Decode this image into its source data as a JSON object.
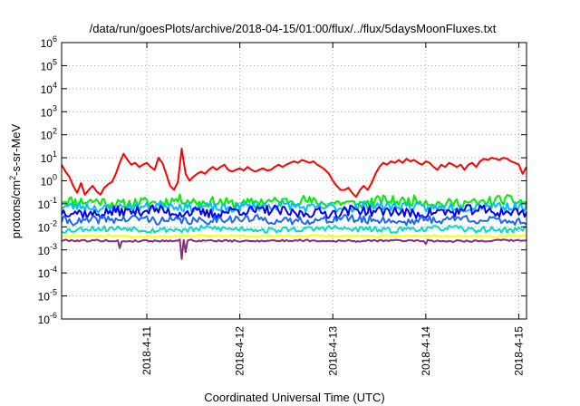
{
  "chart_data": {
    "type": "line",
    "title": "/data/run/goesPlots/archive/2018-04-15/01:00/flux/../flux/5daysMoonFluxes.txt",
    "xlabel": "Coordinated Universal Time (UTC)",
    "ylabel": "protons/cm²-s-sr-MeV",
    "ylabel_parts": {
      "prefix": "protons/cm",
      "sup": "2",
      "suffix": "-s-sr-MeV"
    },
    "y_scale": "log",
    "ylim": [
      1e-06,
      1000000.0
    ],
    "y_ticks": [
      {
        "exp": "-6",
        "value": 1e-06
      },
      {
        "exp": "-5",
        "value": 1e-05
      },
      {
        "exp": "-4",
        "value": 0.0001
      },
      {
        "exp": "-3",
        "value": 0.001
      },
      {
        "exp": "-2",
        "value": 0.01
      },
      {
        "exp": "-1",
        "value": 0.1
      },
      {
        "exp": "0",
        "value": 1
      },
      {
        "exp": "1",
        "value": 10
      },
      {
        "exp": "2",
        "value": 100
      },
      {
        "exp": "3",
        "value": 1000
      },
      {
        "exp": "4",
        "value": 10000
      },
      {
        "exp": "5",
        "value": 100000
      },
      {
        "exp": "6",
        "value": 1000000
      }
    ],
    "y_tick_base": "10",
    "xlim": [
      "2018-04-10T02:00",
      "2018-04-15T02:00"
    ],
    "x_ticks": [
      {
        "label": "2018-4-11",
        "value": "2018-04-11T00:00"
      },
      {
        "label": "2018-4-12",
        "value": "2018-04-12T00:00"
      },
      {
        "label": "2018-4-13",
        "value": "2018-04-13T00:00"
      },
      {
        "label": "2018-4-14",
        "value": "2018-04-14T00:00"
      },
      {
        "label": "2018-4-15",
        "value": "2018-04-15T00:00"
      }
    ],
    "grid": true,
    "grid_style": "dotted",
    "legend": "none",
    "series": [
      {
        "color": "#ff0000",
        "points": [
          [
            "2018-04-10T02:00",
            5
          ],
          [
            "2018-04-10T03:00",
            2.5
          ],
          [
            "2018-04-10T04:00",
            1.5
          ],
          [
            "2018-04-10T05:00",
            0.6
          ],
          [
            "2018-04-10T06:00",
            0.3
          ],
          [
            "2018-04-10T07:00",
            0.8
          ],
          [
            "2018-04-10T08:00",
            0.25
          ],
          [
            "2018-04-10T09:00",
            0.4
          ],
          [
            "2018-04-10T10:00",
            0.6
          ],
          [
            "2018-04-10T11:00",
            0.35
          ],
          [
            "2018-04-10T12:00",
            0.25
          ],
          [
            "2018-04-10T13:00",
            0.5
          ],
          [
            "2018-04-10T14:00",
            0.7
          ],
          [
            "2018-04-10T15:00",
            0.9
          ],
          [
            "2018-04-10T16:00",
            2
          ],
          [
            "2018-04-10T17:00",
            6
          ],
          [
            "2018-04-10T18:00",
            15
          ],
          [
            "2018-04-10T19:00",
            8
          ],
          [
            "2018-04-10T20:00",
            5
          ],
          [
            "2018-04-10T21:00",
            6
          ],
          [
            "2018-04-10T22:00",
            4
          ],
          [
            "2018-04-10T23:00",
            5
          ],
          [
            "2018-04-11T00:00",
            6
          ],
          [
            "2018-04-11T01:00",
            4
          ],
          [
            "2018-04-11T02:00",
            3
          ],
          [
            "2018-04-11T03:00",
            10
          ],
          [
            "2018-04-11T04:00",
            6
          ],
          [
            "2018-04-11T05:00",
            2
          ],
          [
            "2018-04-11T06:00",
            0.6
          ],
          [
            "2018-04-11T07:00",
            0.4
          ],
          [
            "2018-04-11T08:00",
            0.9
          ],
          [
            "2018-04-11T09:00",
            25
          ],
          [
            "2018-04-11T10:00",
            2
          ],
          [
            "2018-04-11T11:00",
            1
          ],
          [
            "2018-04-11T12:00",
            1.5
          ],
          [
            "2018-04-11T13:00",
            2
          ],
          [
            "2018-04-11T14:00",
            2.5
          ],
          [
            "2018-04-11T15:00",
            2
          ],
          [
            "2018-04-11T16:00",
            3
          ],
          [
            "2018-04-11T17:00",
            4
          ],
          [
            "2018-04-11T18:00",
            3
          ],
          [
            "2018-04-11T19:00",
            4
          ],
          [
            "2018-04-11T20:00",
            5
          ],
          [
            "2018-04-11T21:00",
            3
          ],
          [
            "2018-04-11T22:00",
            2.5
          ],
          [
            "2018-04-11T23:00",
            3
          ],
          [
            "2018-04-12T00:00",
            3.5
          ],
          [
            "2018-04-12T01:00",
            2.8
          ],
          [
            "2018-04-12T02:00",
            4
          ],
          [
            "2018-04-12T03:00",
            3
          ],
          [
            "2018-04-12T04:00",
            2.5
          ],
          [
            "2018-04-12T05:00",
            3
          ],
          [
            "2018-04-12T06:00",
            3.5
          ],
          [
            "2018-04-12T07:00",
            2.8
          ],
          [
            "2018-04-12T08:00",
            3
          ],
          [
            "2018-04-12T09:00",
            4
          ],
          [
            "2018-04-12T10:00",
            5
          ],
          [
            "2018-04-12T11:00",
            4
          ],
          [
            "2018-04-12T12:00",
            5
          ],
          [
            "2018-04-12T13:00",
            6
          ],
          [
            "2018-04-12T14:00",
            7
          ],
          [
            "2018-04-12T15:00",
            6
          ],
          [
            "2018-04-12T16:00",
            8
          ],
          [
            "2018-04-12T17:00",
            7
          ],
          [
            "2018-04-12T18:00",
            6
          ],
          [
            "2018-04-12T19:00",
            7
          ],
          [
            "2018-04-12T20:00",
            5
          ],
          [
            "2018-04-12T21:00",
            4
          ],
          [
            "2018-04-12T22:00",
            3
          ],
          [
            "2018-04-12T23:00",
            2
          ],
          [
            "2018-04-13T00:00",
            1
          ],
          [
            "2018-04-13T01:00",
            0.6
          ],
          [
            "2018-04-13T02:00",
            0.4
          ],
          [
            "2018-04-13T03:00",
            0.4
          ],
          [
            "2018-04-13T04:00",
            0.5
          ],
          [
            "2018-04-13T05:00",
            0.3
          ],
          [
            "2018-04-13T06:00",
            0.2
          ],
          [
            "2018-04-13T07:00",
            0.4
          ],
          [
            "2018-04-13T08:00",
            0.6
          ],
          [
            "2018-04-13T09:00",
            0.4
          ],
          [
            "2018-04-13T10:00",
            0.8
          ],
          [
            "2018-04-13T11:00",
            2
          ],
          [
            "2018-04-13T12:00",
            4
          ],
          [
            "2018-04-13T13:00",
            6
          ],
          [
            "2018-04-13T14:00",
            5
          ],
          [
            "2018-04-13T15:00",
            7
          ],
          [
            "2018-04-13T16:00",
            6
          ],
          [
            "2018-04-13T17:00",
            8
          ],
          [
            "2018-04-13T18:00",
            6
          ],
          [
            "2018-04-13T19:00",
            9
          ],
          [
            "2018-04-13T20:00",
            7
          ],
          [
            "2018-04-13T21:00",
            8
          ],
          [
            "2018-04-13T22:00",
            6
          ],
          [
            "2018-04-13T23:00",
            5
          ],
          [
            "2018-04-14T00:00",
            7
          ],
          [
            "2018-04-14T01:00",
            6
          ],
          [
            "2018-04-14T02:00",
            4
          ],
          [
            "2018-04-14T03:00",
            3
          ],
          [
            "2018-04-14T04:00",
            5
          ],
          [
            "2018-04-14T05:00",
            4
          ],
          [
            "2018-04-14T06:00",
            6
          ],
          [
            "2018-04-14T07:00",
            5
          ],
          [
            "2018-04-14T08:00",
            4
          ],
          [
            "2018-04-14T09:00",
            5
          ],
          [
            "2018-04-14T10:00",
            3
          ],
          [
            "2018-04-14T11:00",
            5
          ],
          [
            "2018-04-14T12:00",
            6
          ],
          [
            "2018-04-14T13:00",
            4
          ],
          [
            "2018-04-14T14:00",
            7
          ],
          [
            "2018-04-14T15:00",
            9
          ],
          [
            "2018-04-14T16:00",
            8
          ],
          [
            "2018-04-14T17:00",
            10
          ],
          [
            "2018-04-14T18:00",
            9
          ],
          [
            "2018-04-14T19:00",
            8
          ],
          [
            "2018-04-14T20:00",
            10
          ],
          [
            "2018-04-14T21:00",
            9
          ],
          [
            "2018-04-14T22:00",
            7
          ],
          [
            "2018-04-14T23:00",
            6
          ],
          [
            "2018-04-15T00:00",
            5
          ],
          [
            "2018-04-15T01:00",
            2
          ],
          [
            "2018-04-15T02:00",
            4
          ]
        ]
      },
      {
        "color": "#00ee00",
        "base": 0.12,
        "jitter": 0.45,
        "seed": 11
      },
      {
        "color": "#00bfff",
        "base": 0.075,
        "jitter": 0.4,
        "seed": 23
      },
      {
        "color": "#0000ff",
        "base": 0.045,
        "jitter": 0.45,
        "seed": 37
      },
      {
        "color": "#1e64ff",
        "base": 0.02,
        "jitter": 0.35,
        "seed": 41
      },
      {
        "color": "#00ddc0",
        "base": 0.008,
        "jitter": 0.25,
        "seed": 53
      },
      {
        "color": "#ffff00",
        "base": 0.004,
        "jitter": 0.08,
        "seed": 67
      },
      {
        "color": "#8b2c7a",
        "base": 0.0025,
        "jitter": 0.08,
        "seed": 79,
        "dips": [
          [
            "2018-04-10T17:00",
            0.0012
          ],
          [
            "2018-04-11T09:00",
            0.0004
          ],
          [
            "2018-04-11T10:00",
            0.0008
          ],
          [
            "2018-04-14T00:00",
            0.0018
          ]
        ]
      }
    ]
  }
}
